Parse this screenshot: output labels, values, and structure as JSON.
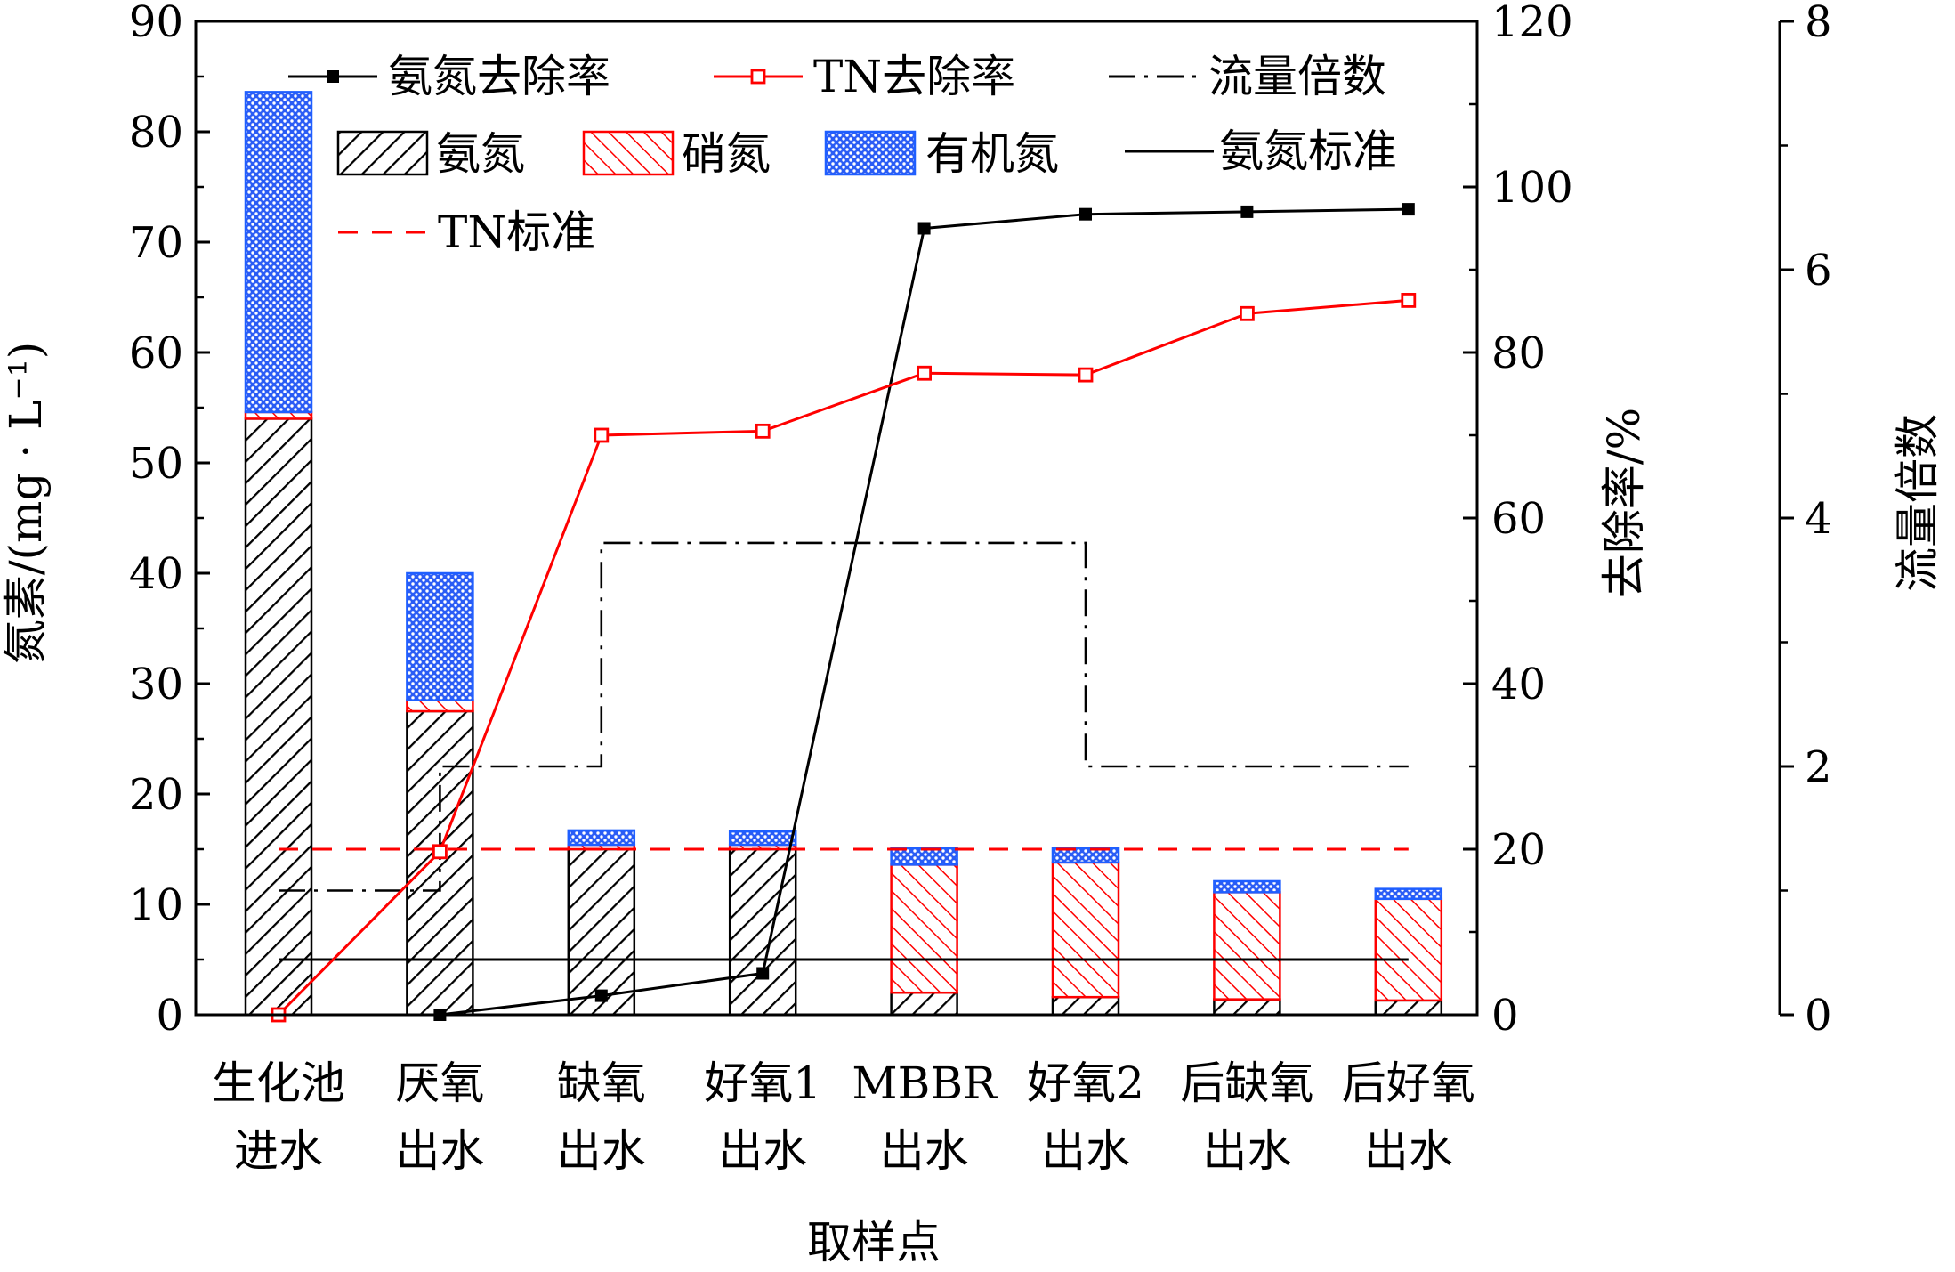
{
  "chart_data": {
    "type": "bar",
    "categories": [
      [
        "生化池",
        "进水"
      ],
      [
        "厌氧",
        "出水"
      ],
      [
        "缺氧",
        "出水"
      ],
      [
        "好氧1",
        "出水"
      ],
      [
        "MBBR",
        "出水"
      ],
      [
        "好氧2",
        "出水"
      ],
      [
        "后缺氧",
        "出水"
      ],
      [
        "后好氧",
        "出水"
      ]
    ],
    "xlabel": "取样点",
    "ylabel": "氮素/(mg · L⁻¹)",
    "y2label": "去除率/%",
    "y3label": "流量倍数",
    "ylim": [
      0,
      90
    ],
    "y2lim": [
      0,
      120
    ],
    "y3lim": [
      0,
      8
    ],
    "yticks": [
      0,
      10,
      20,
      30,
      40,
      50,
      60,
      70,
      80,
      90
    ],
    "y2ticks": [
      0,
      20,
      40,
      60,
      80,
      100,
      120
    ],
    "y3ticks": [
      0,
      2,
      4,
      6,
      8
    ],
    "stacked_series": [
      {
        "name": "氨氮",
        "color": "#000000",
        "pattern": "diagonal-right",
        "values": [
          54.0,
          27.5,
          15.0,
          15.0,
          2.0,
          1.6,
          1.4,
          1.3
        ]
      },
      {
        "name": "硝氮",
        "color": "#ff0000",
        "pattern": "diagonal-left",
        "values": [
          0.6,
          1.0,
          0.4,
          0.4,
          11.6,
          12.2,
          9.7,
          9.2
        ]
      },
      {
        "name": "有机氮",
        "color": "#1f5fff",
        "pattern": "crosshatch",
        "values": [
          29.0,
          11.5,
          1.3,
          1.2,
          1.5,
          1.3,
          1.0,
          0.9
        ]
      }
    ],
    "line_series": [
      {
        "name": "氨氮去除率",
        "axis": "y2",
        "color": "#000000",
        "marker": "filled-square",
        "x_index": [
          1,
          2,
          3,
          4,
          5,
          6,
          7
        ],
        "values": [
          0,
          2.3,
          5.0,
          95.0,
          96.7,
          97.0,
          97.3
        ]
      },
      {
        "name": "TN去除率",
        "axis": "y2",
        "color": "#ff0000",
        "marker": "open-square",
        "x_index": [
          0,
          1,
          2,
          3,
          4,
          5,
          6,
          7
        ],
        "values": [
          0,
          19.7,
          70.0,
          70.5,
          77.5,
          77.3,
          84.7,
          86.3
        ]
      }
    ],
    "flow_ratio": {
      "name": "流量倍数",
      "axis": "y3",
      "style": "dash-dot",
      "steps": [
        [
          0,
          1.0
        ],
        [
          1,
          2.0
        ],
        [
          2,
          3.8
        ],
        [
          5,
          2.0
        ],
        [
          7,
          2.0
        ]
      ]
    },
    "standards": [
      {
        "name": "氨氮标准",
        "value": 5,
        "style": "solid",
        "color": "#000000"
      },
      {
        "name": "TN标准",
        "value": 15,
        "style": "dashed",
        "color": "#ff0000"
      }
    ],
    "legend": {
      "placement": "top",
      "entries": [
        "氨氮去除率",
        "TN去除率",
        "流量倍数",
        "氨氮",
        "硝氮",
        "有机氮",
        "氨氮标准",
        "TN标准"
      ]
    }
  }
}
